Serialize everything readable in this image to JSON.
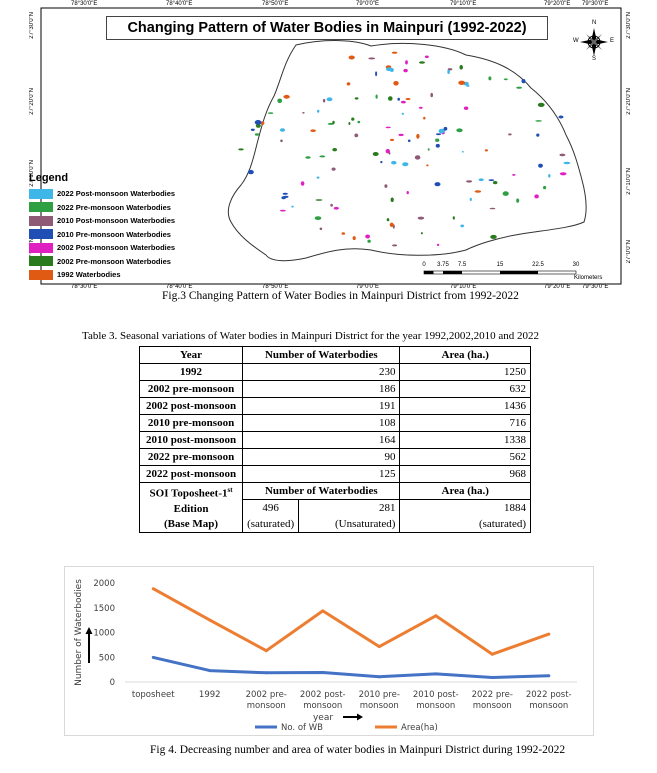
{
  "map": {
    "title": "Changing Pattern of Water Bodies in Mainpuri (1992-2022)",
    "top_coords": [
      "78°30'0\"E",
      "78°40'0\"E",
      "78°50'0\"E",
      "79°0'0\"E",
      "79°10'0\"E",
      "79°20'0\"E",
      "79°30'0\"E"
    ],
    "bottom_coords": [
      "78°30'0\"E",
      "78°40'0\"E",
      "78°50'0\"E",
      "79°0'0\"E",
      "79°10'0\"E",
      "79°20'0\"E",
      "79°30'0\"E"
    ],
    "left_coords": [
      "27°30'0\"N",
      "27°20'0\"N",
      "27°10'0\"N",
      "27°0'0\"N"
    ],
    "right_coords": [
      "27°30'0\"N",
      "27°20'0\"N",
      "27°10'0\"N",
      "27°0'0\"N"
    ],
    "legend": {
      "title": "Legend",
      "items": [
        {
          "label": "2022 Post-monsoon Waterbodies",
          "color": "#3fb6e8"
        },
        {
          "label": "2022 Pre-monsoon Waterbodies",
          "color": "#2ea043"
        },
        {
          "label": "2010 Post-monsoon Waterbodies",
          "color": "#8e5a76"
        },
        {
          "label": "2010 Pre-monsoon Waterbodies",
          "color": "#1f4fb5"
        },
        {
          "label": "2002 Post-monsoon Waterbodies",
          "color": "#e020c0"
        },
        {
          "label": "2002 Pre-monsoon Waterbodies",
          "color": "#2a7a1e"
        },
        {
          "label": "1992 Waterbodies",
          "color": "#e05a14"
        }
      ]
    },
    "scale": {
      "ticks": [
        "0",
        "3.75",
        "7.5",
        "15",
        "22.5",
        "30"
      ],
      "unit": "Kilometers"
    },
    "compass": {
      "n": "N",
      "s": "S",
      "e": "E",
      "w": "W"
    }
  },
  "fig3_caption": "Fig.3 Changing Pattern of Water Bodies in Mainpuri District from 1992-2022",
  "table3": {
    "caption": "Table 3. Seasonal variations of Water bodies in Mainpuri District for the year 1992,2002,2010 and 2022",
    "headers": [
      "Year",
      "Number of Waterbodies",
      "Area (ha.)"
    ],
    "rows": [
      {
        "year": "1992",
        "count": "230",
        "area": "1250"
      },
      {
        "year": "2002 pre-monsoon",
        "count": "186",
        "area": "632"
      },
      {
        "year": "2002 post-monsoon",
        "count": "191",
        "area": "1436"
      },
      {
        "year": "2010 pre-monsoon",
        "count": "108",
        "area": "716"
      },
      {
        "year": "2010 post-monsoon",
        "count": "164",
        "area": "1338"
      },
      {
        "year": "2022 pre-monsoon",
        "count": "90",
        "area": "562"
      },
      {
        "year": "2022 post-monsoon",
        "count": "125",
        "area": "968"
      }
    ],
    "soi": {
      "label_line1": "SOI Toposheet-1",
      "label_sup": "st",
      "label_line2": "Edition",
      "label_line3": "(Base Map)",
      "count_header": "Number of Waterbodies",
      "area_header": "Area (ha.)",
      "saturated_count": "496",
      "saturated_note": "(saturated)",
      "unsaturated_count": "281",
      "unsaturated_note": "(Unsaturated)",
      "area_value": "1884",
      "area_note": "(saturated)"
    }
  },
  "chart_data": {
    "type": "line",
    "categories": [
      "toposheet",
      "1992",
      "2002 pre-monsoon",
      "2002 post-monsoon",
      "2010 pre-monsoon",
      "2010 post-monsoon",
      "2022 pre-monsoon",
      "2022 post-monsoon"
    ],
    "category_lines": [
      [
        "toposheet"
      ],
      [
        "1992"
      ],
      [
        "2002 pre-",
        "monsoon"
      ],
      [
        "2002 post-",
        "monsoon"
      ],
      [
        "2010 pre-",
        "monsoon"
      ],
      [
        "2010 post-",
        "monsoon"
      ],
      [
        "2022 pre-",
        "monsoon"
      ],
      [
        "2022 post-",
        "monsoon"
      ]
    ],
    "series": [
      {
        "name": "No. of WB",
        "color": "#4472c4",
        "values": [
          496,
          230,
          186,
          191,
          108,
          164,
          90,
          125
        ]
      },
      {
        "name": "Area(ha)",
        "color": "#ed7d31",
        "values": [
          1884,
          1250,
          632,
          1436,
          716,
          1338,
          562,
          968
        ]
      }
    ],
    "ylabel": "Number of Waterbodies",
    "xlabel": "year",
    "y_ticks": [
      "0",
      "500",
      "1000",
      "1500",
      "2000"
    ],
    "ylim": [
      0,
      2000
    ],
    "grid": false,
    "legend_position": "bottom"
  },
  "fig4_caption": "Fig 4. Decreasing number and area of water bodies in Mainpuri District during 1992-2022"
}
